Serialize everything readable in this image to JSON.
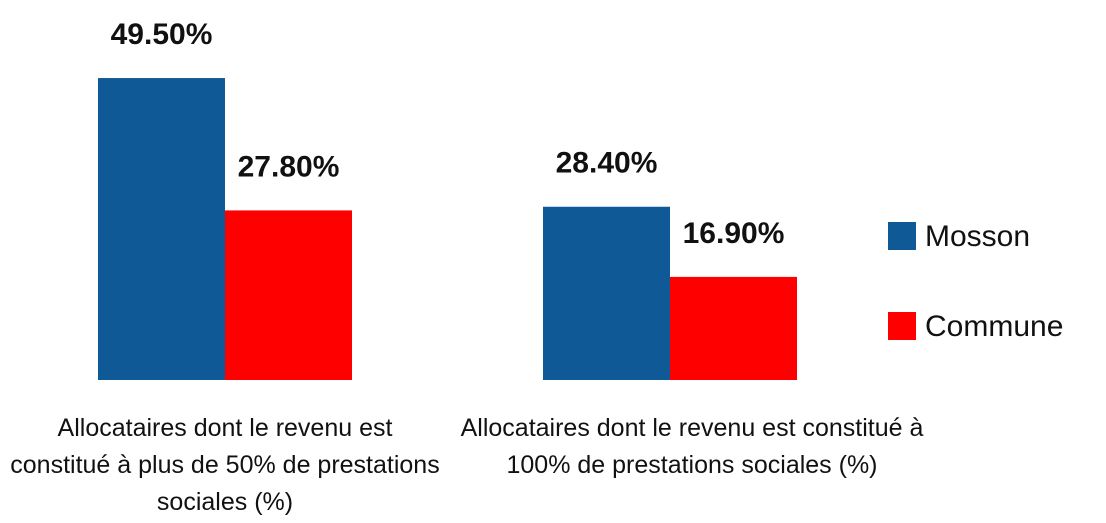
{
  "chart_data": {
    "type": "bar",
    "categories": [
      "Allocataires dont le revenu est constitué à plus de 50% de prestations sociales (%)",
      "Allocataires dont le revenu est constitué à 100% de prestations sociales (%)"
    ],
    "series": [
      {
        "name": "Mosson",
        "color": "#0f5a96",
        "values": [
          49.5,
          28.4
        ],
        "value_labels": [
          "49.50%",
          "28.40%"
        ]
      },
      {
        "name": "Commune",
        "color": "#ff0000",
        "values": [
          27.8,
          16.9
        ],
        "value_labels": [
          "27.80%",
          "16.90%"
        ]
      }
    ],
    "legend": "right"
  }
}
